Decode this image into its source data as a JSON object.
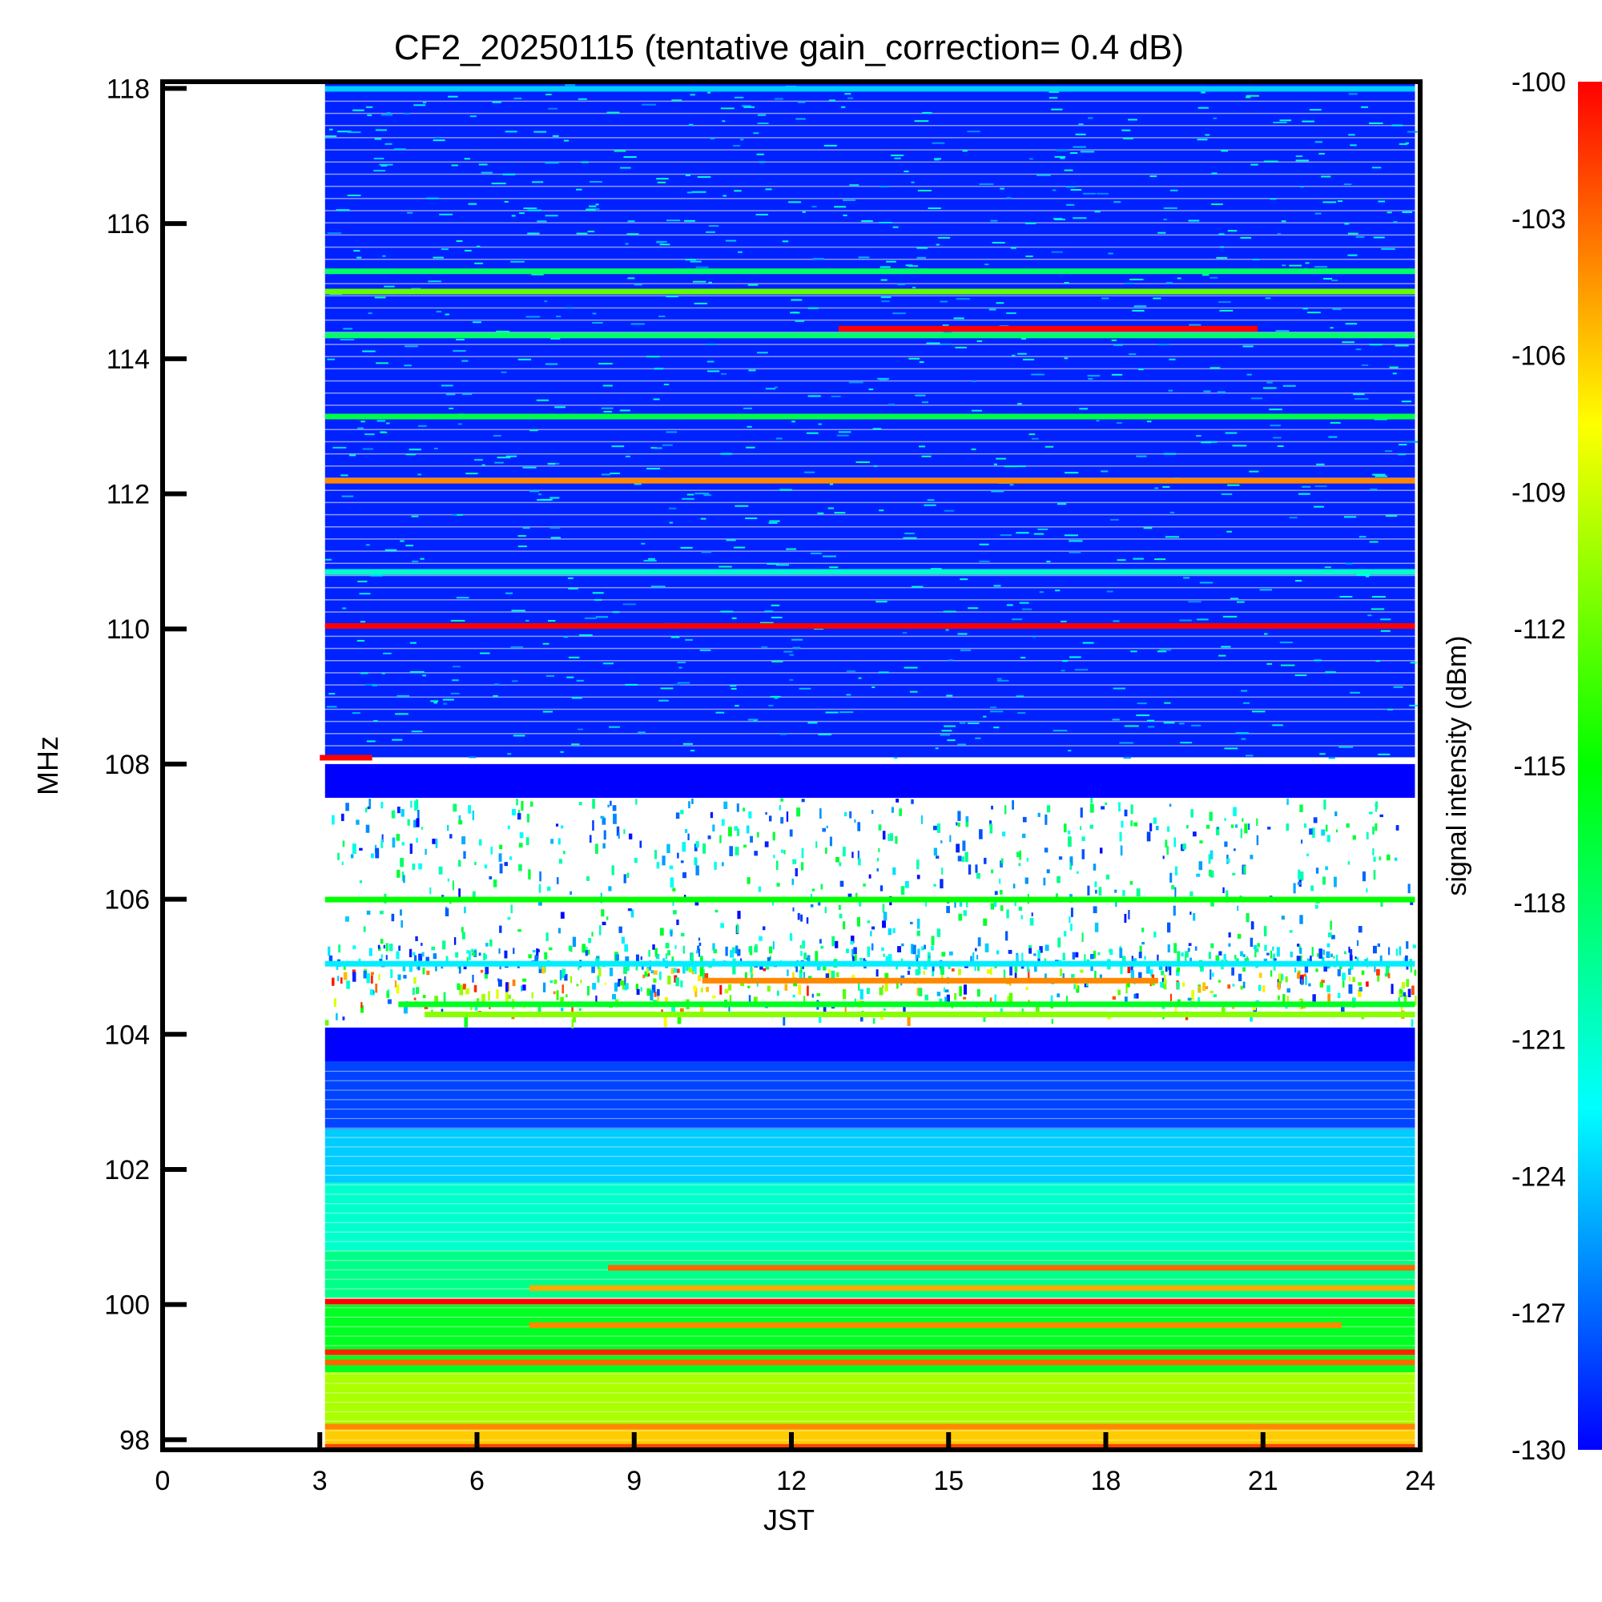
{
  "chart_data": {
    "type": "heatmap",
    "title": "CF2_20250115 (tentative gain_correction=  0.4 dB)",
    "xlabel": "JST",
    "ylabel": "MHz",
    "xlim": [
      0,
      24
    ],
    "ylim": [
      97.85,
      118.1
    ],
    "x_ticks": [
      "0",
      "3",
      "6",
      "9",
      "12",
      "15",
      "18",
      "21",
      "24"
    ],
    "y_ticks": [
      "98",
      "100",
      "102",
      "104",
      "106",
      "108",
      "110",
      "112",
      "114",
      "116",
      "118"
    ],
    "data_time_range": [
      3.1,
      23.9
    ],
    "colorbar": {
      "label": "signal intensity (dBm)",
      "min": -130,
      "max": -100,
      "ticks": [
        "-100",
        "-103",
        "-106",
        "-109",
        "-112",
        "-115",
        "-118",
        "-121",
        "-124",
        "-127",
        "-130"
      ]
    },
    "background_by_band": [
      {
        "from_mhz": 108.1,
        "to_mhz": 118.1,
        "dbm": -129
      },
      {
        "from_mhz": 107.5,
        "to_mhz": 108.0,
        "dbm": -130
      },
      {
        "from_mhz": 103.6,
        "to_mhz": 104.1,
        "dbm": -130
      },
      {
        "from_mhz": 102.6,
        "to_mhz": 103.6,
        "dbm": -128
      },
      {
        "from_mhz": 101.8,
        "to_mhz": 102.6,
        "dbm": -124
      },
      {
        "from_mhz": 100.8,
        "to_mhz": 101.8,
        "dbm": -121
      },
      {
        "from_mhz": 100.1,
        "to_mhz": 100.8,
        "dbm": -119
      },
      {
        "from_mhz": 99.0,
        "to_mhz": 100.0,
        "dbm": -116
      },
      {
        "from_mhz": 98.2,
        "to_mhz": 99.0,
        "dbm": -110
      },
      {
        "from_mhz": 97.85,
        "to_mhz": 98.2,
        "dbm": -106
      }
    ],
    "sparse_band_mhz": [
      104.2,
      107.5
    ],
    "signals": [
      {
        "freq_mhz": 118.0,
        "start": 3.1,
        "end": 23.9,
        "dbm": -124
      },
      {
        "freq_mhz": 115.3,
        "start": 3.1,
        "end": 23.9,
        "dbm": -118
      },
      {
        "freq_mhz": 115.0,
        "start": 3.1,
        "end": 23.9,
        "dbm": -112
      },
      {
        "freq_mhz": 114.45,
        "start": 12.9,
        "end": 20.9,
        "dbm": -100
      },
      {
        "freq_mhz": 114.35,
        "start": 3.1,
        "end": 23.9,
        "dbm": -118
      },
      {
        "freq_mhz": 113.15,
        "start": 3.1,
        "end": 23.9,
        "dbm": -117
      },
      {
        "freq_mhz": 112.2,
        "start": 3.1,
        "end": 23.9,
        "dbm": -104
      },
      {
        "freq_mhz": 110.85,
        "start": 3.1,
        "end": 23.9,
        "dbm": -121
      },
      {
        "freq_mhz": 110.05,
        "start": 3.1,
        "end": 23.9,
        "dbm": -100
      },
      {
        "freq_mhz": 108.1,
        "start": 3.0,
        "end": 4.0,
        "dbm": -100
      },
      {
        "freq_mhz": 106.0,
        "start": 3.1,
        "end": 23.9,
        "dbm": -115
      },
      {
        "freq_mhz": 105.05,
        "start": 3.1,
        "end": 23.9,
        "dbm": -123
      },
      {
        "freq_mhz": 104.8,
        "start": 10.3,
        "end": 19.0,
        "dbm": -104
      },
      {
        "freq_mhz": 104.45,
        "start": 4.5,
        "end": 23.9,
        "dbm": -116
      },
      {
        "freq_mhz": 104.3,
        "start": 5.0,
        "end": 23.9,
        "dbm": -111
      },
      {
        "freq_mhz": 100.55,
        "start": 8.5,
        "end": 23.9,
        "dbm": -103
      },
      {
        "freq_mhz": 100.25,
        "start": 7.0,
        "end": 23.9,
        "dbm": -105
      },
      {
        "freq_mhz": 100.05,
        "start": 3.1,
        "end": 23.9,
        "dbm": -100
      },
      {
        "freq_mhz": 99.7,
        "start": 7.0,
        "end": 22.5,
        "dbm": -104
      },
      {
        "freq_mhz": 99.3,
        "start": 3.1,
        "end": 23.9,
        "dbm": -101
      },
      {
        "freq_mhz": 99.15,
        "start": 3.1,
        "end": 23.9,
        "dbm": -103
      },
      {
        "freq_mhz": 98.2,
        "start": 3.1,
        "end": 23.9,
        "dbm": -104
      },
      {
        "freq_mhz": 97.9,
        "start": 3.1,
        "end": 23.9,
        "dbm": -102
      }
    ]
  }
}
